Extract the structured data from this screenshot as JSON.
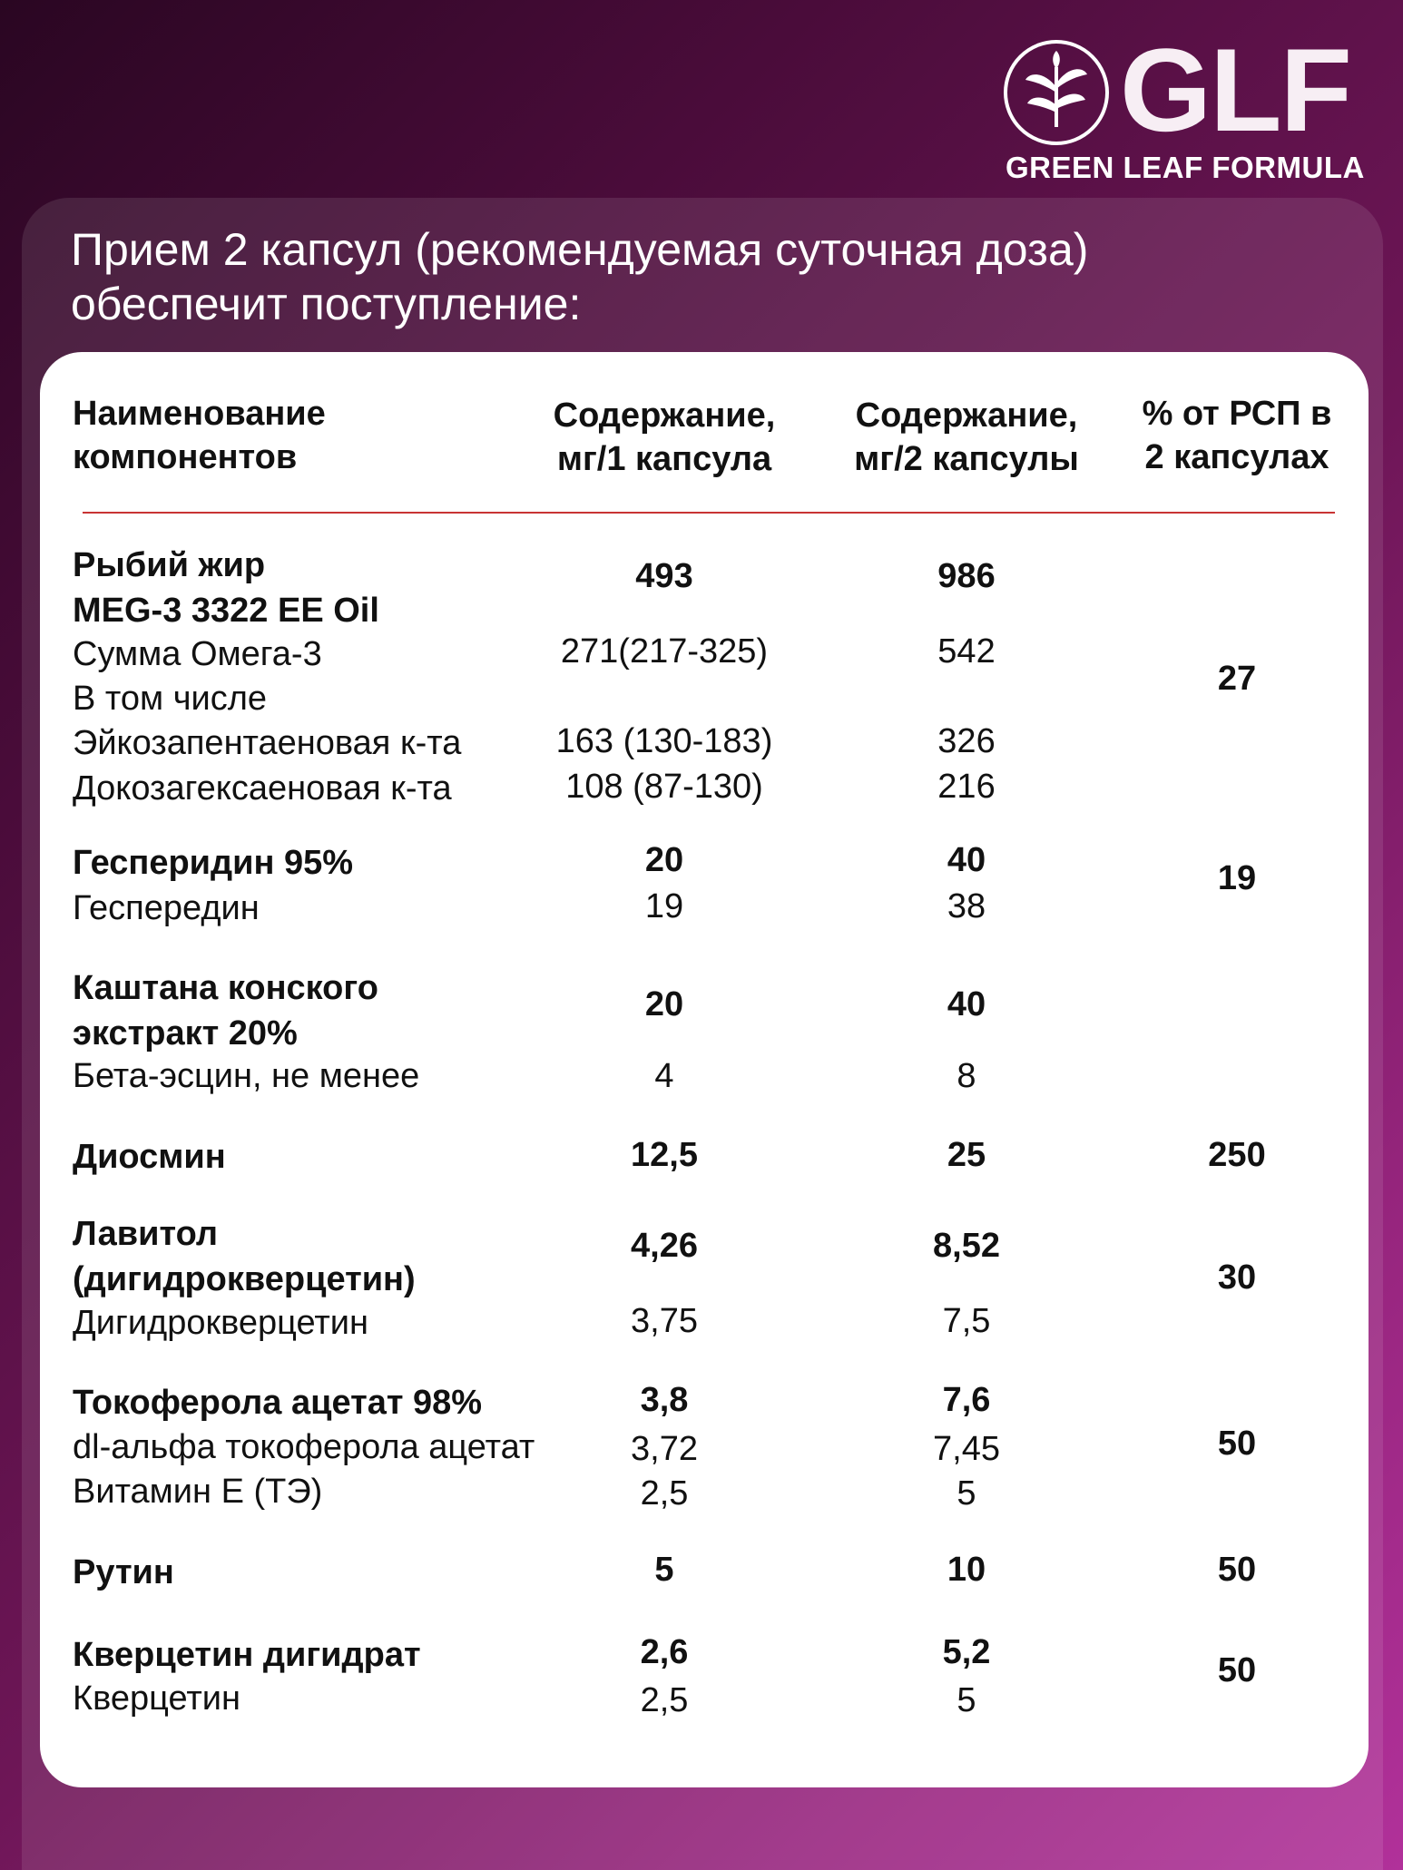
{
  "brand": {
    "name": "GLF",
    "tagline": "GREEN LEAF FORMULA",
    "accent": "#c83434",
    "background": "#6e1657"
  },
  "heading": {
    "line1": "Прием 2 капсул (рекомендуемая суточная доза)",
    "line2": "обеспечит поступление:"
  },
  "table": {
    "headers": {
      "col1_line1": "Наименование",
      "col1_line2": "компонентов",
      "col2_line1": "Содержание,",
      "col2_line2": "мг/1 капсула",
      "col3_line1": "Содержание,",
      "col3_line2": "мг/2 капсулы",
      "col4_line1": "% от РСП в",
      "col4_line2": "2 капсулах"
    },
    "fish": {
      "name1": "Рыбий жир",
      "name2": "MEG-3 3322 EE Oil",
      "v1": "493",
      "v2": "986",
      "sub1": "Сумма Омега-3",
      "sub1_v1": "271(217-325)",
      "sub1_v2": "542",
      "sub2": "В том числе",
      "sub3": "Эйкозапентаеновая к-та",
      "sub3_v1": "163 (130-183)",
      "sub3_v2": "326",
      "sub4": "Докозагексаеновая к-та",
      "sub4_v1": "108 (87-130)",
      "sub4_v2": "216",
      "pct": "27"
    },
    "hesp": {
      "name": "Гесперидин 95%",
      "v1": "20",
      "v2": "40",
      "sub": "Геспередин",
      "sub_v1": "19",
      "sub_v2": "38",
      "pct": "19"
    },
    "chestnut": {
      "name1": "Каштана конского",
      "name2": "экстракт 20%",
      "v1": "20",
      "v2": "40",
      "sub": "Бета-эсцин, не менее",
      "sub_v1": "4",
      "sub_v2": "8"
    },
    "diosmin": {
      "name": "Диосмин",
      "v1": "12,5",
      "v2": "25",
      "pct": "250"
    },
    "lavitol": {
      "name1": "Лавитол",
      "name2": "(дигидрокверцетин)",
      "v1": "4,26",
      "v2": "8,52",
      "sub": "Дигидрокверцетин",
      "sub_v1": "3,75",
      "sub_v2": "7,5",
      "pct": "30"
    },
    "toco": {
      "name": "Токоферола ацетат 98%",
      "v1": "3,8",
      "v2": "7,6",
      "sub1": "dl-альфа токоферола ацетат",
      "sub1_v1": "3,72",
      "sub1_v2": "7,45",
      "sub2": "Витамин Е (ТЭ)",
      "sub2_v1": "2,5",
      "sub2_v2": "5",
      "pct": "50"
    },
    "rutin": {
      "name": "Рутин",
      "v1": "5",
      "v2": "10",
      "pct": "50"
    },
    "querc": {
      "name": "Кверцетин дигидрат",
      "v1": "2,6",
      "v2": "5,2",
      "sub": "Кверцетин",
      "sub_v1": "2,5",
      "sub_v2": "5",
      "pct": "50"
    }
  }
}
